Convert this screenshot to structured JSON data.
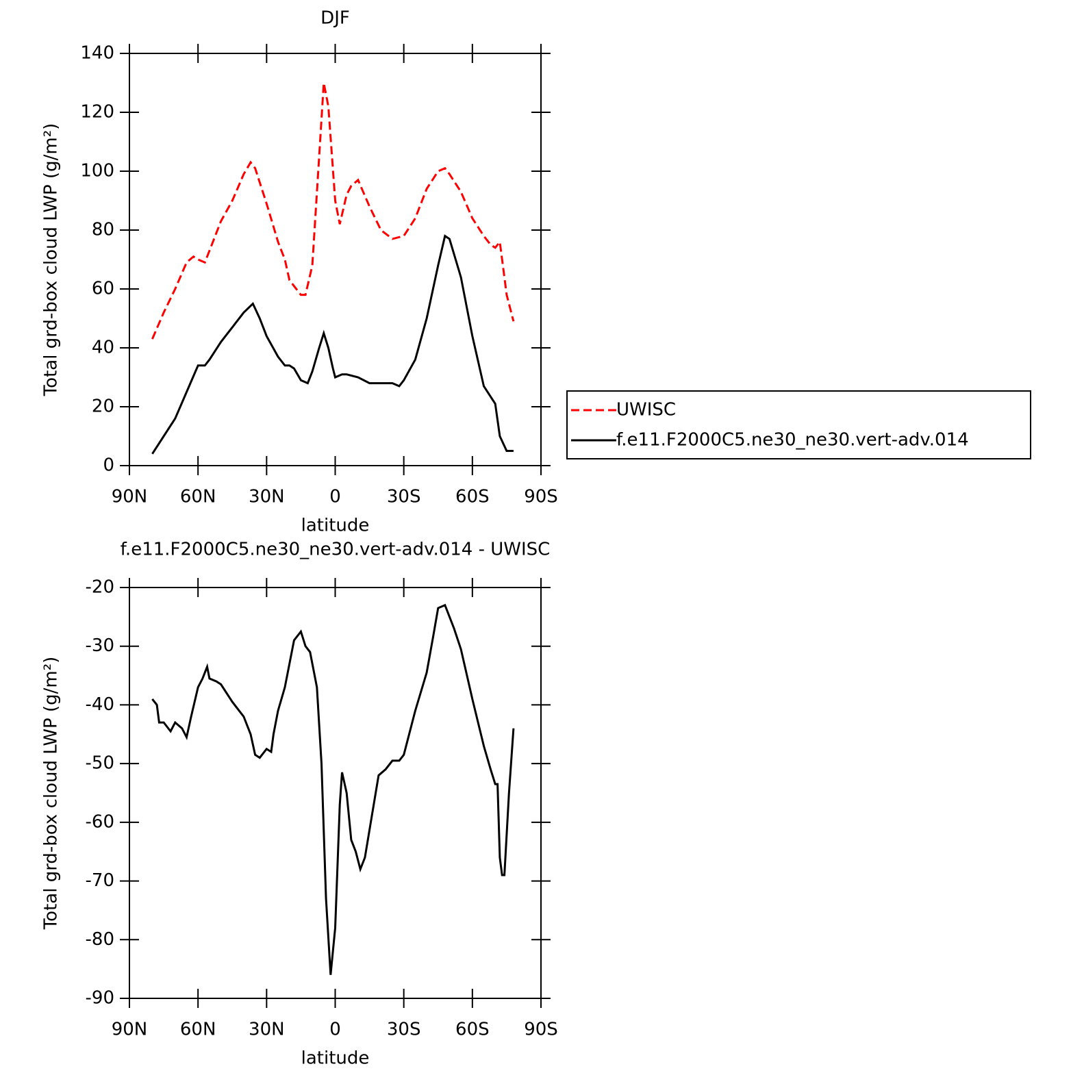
{
  "chart_data": [
    {
      "type": "line",
      "title": "DJF",
      "xlabel": "latitude",
      "ylabel": "Total grd-box cloud LWP (g/m²)",
      "xlim": [
        90,
        -90
      ],
      "xticks": [
        {
          "value": 90,
          "label": "90N"
        },
        {
          "value": 60,
          "label": "60N"
        },
        {
          "value": 30,
          "label": "30N"
        },
        0,
        {
          "value": -30,
          "label": "30S"
        },
        {
          "value": -60,
          "label": "60S"
        },
        {
          "value": -90,
          "label": "90S"
        }
      ],
      "ylim": [
        0,
        140
      ],
      "yticks": [
        0,
        20,
        40,
        60,
        80,
        100,
        120,
        140
      ],
      "legend": "outside right",
      "series": [
        {
          "name": "UWISC",
          "color": "#ff0000",
          "dashed": true,
          "x": [
            80,
            75,
            70,
            65,
            62,
            60,
            57,
            55,
            50,
            45,
            40,
            37,
            35,
            30,
            25,
            22,
            20,
            15,
            13,
            10,
            7,
            5,
            3,
            0,
            -2,
            -5,
            -7,
            -10,
            -15,
            -20,
            -25,
            -30,
            -35,
            -40,
            -45,
            -48,
            -50,
            -55,
            -60,
            -65,
            -68,
            -70,
            -72,
            -75,
            -78
          ],
          "values": [
            43,
            52,
            60,
            69,
            71,
            70,
            69,
            73,
            83,
            90,
            99,
            103,
            101,
            89,
            76,
            70,
            63,
            58,
            58,
            68,
            105,
            130,
            122,
            90,
            82,
            92,
            95,
            97,
            88,
            80,
            77,
            78,
            84,
            94,
            100,
            101,
            99,
            93,
            84,
            78,
            75,
            74,
            76,
            58,
            49
          ]
        },
        {
          "name": "f.e11.F2000C5.ne30_ne30.vert-adv.014",
          "color": "#000000",
          "dashed": false,
          "x": [
            80,
            75,
            70,
            65,
            60,
            57,
            55,
            50,
            45,
            40,
            36,
            33,
            30,
            25,
            22,
            20,
            18,
            15,
            12,
            10,
            7,
            5,
            3,
            1,
            0,
            -3,
            -5,
            -10,
            -15,
            -20,
            -25,
            -28,
            -30,
            -35,
            -40,
            -45,
            -48,
            -50,
            -55,
            -60,
            -65,
            -70,
            -72,
            -75,
            -78
          ],
          "values": [
            4,
            10,
            16,
            25,
            34,
            34,
            36,
            42,
            47,
            52,
            55,
            50,
            44,
            37,
            34,
            34,
            33,
            29,
            28,
            32,
            40,
            45,
            40,
            33,
            30,
            31,
            31,
            30,
            28,
            28,
            28,
            27,
            29,
            36,
            50,
            68,
            78,
            77,
            64,
            44,
            27,
            21,
            10,
            5,
            5
          ]
        }
      ]
    },
    {
      "type": "line",
      "title": "f.e11.F2000C5.ne30_ne30.vert-adv.014 - UWISC",
      "xlabel": "latitude",
      "ylabel": "Total grd-box cloud LWP (g/m²)",
      "xlim": [
        90,
        -90
      ],
      "xticks": [
        {
          "value": 90,
          "label": "90N"
        },
        {
          "value": 60,
          "label": "60N"
        },
        {
          "value": 30,
          "label": "30N"
        },
        0,
        {
          "value": -30,
          "label": "30S"
        },
        {
          "value": -60,
          "label": "60S"
        },
        {
          "value": -90,
          "label": "90S"
        }
      ],
      "ylim": [
        -90,
        -20
      ],
      "yticks": [
        -90,
        -80,
        -70,
        -60,
        -50,
        -40,
        -30,
        -20
      ],
      "series": [
        {
          "color": "#000000",
          "dashed": false,
          "x": [
            80,
            78,
            77,
            75,
            72,
            70,
            67,
            65,
            63,
            60,
            58,
            56,
            55,
            52,
            50,
            45,
            40,
            37,
            35,
            33,
            30,
            28,
            27,
            25,
            22,
            20,
            18,
            15,
            13,
            11,
            8,
            6,
            4,
            2,
            0,
            -2,
            -3,
            -5,
            -7,
            -9,
            -11,
            -13,
            -16,
            -19,
            -22,
            -25,
            -28,
            -30,
            -35,
            -40,
            -43,
            -45,
            -48,
            -52,
            -55,
            -60,
            -65,
            -68,
            -70,
            -71,
            -72,
            -73,
            -74,
            -76,
            -78
          ],
          "values": [
            -39,
            -40,
            -43,
            -43,
            -44.5,
            -43,
            -44,
            -45.5,
            -42,
            -37,
            -35.5,
            -33.5,
            -35.5,
            -36,
            -36.5,
            -39.5,
            -42,
            -45,
            -48.5,
            -49,
            -47.5,
            -48,
            -45,
            -41,
            -37,
            -33,
            -29,
            -27.5,
            -30,
            -31,
            -37,
            -50,
            -73,
            -86,
            -78,
            -57,
            -51.5,
            -55,
            -63,
            -65,
            -68,
            -66,
            -59,
            -52,
            -51,
            -49.5,
            -49.5,
            -48.5,
            -41,
            -34.5,
            -28,
            -23.5,
            -23,
            -27,
            -30.5,
            -39,
            -47,
            -51,
            -53.5,
            -53.5,
            -66,
            -69,
            -69,
            -55,
            -44
          ]
        }
      ]
    }
  ]
}
